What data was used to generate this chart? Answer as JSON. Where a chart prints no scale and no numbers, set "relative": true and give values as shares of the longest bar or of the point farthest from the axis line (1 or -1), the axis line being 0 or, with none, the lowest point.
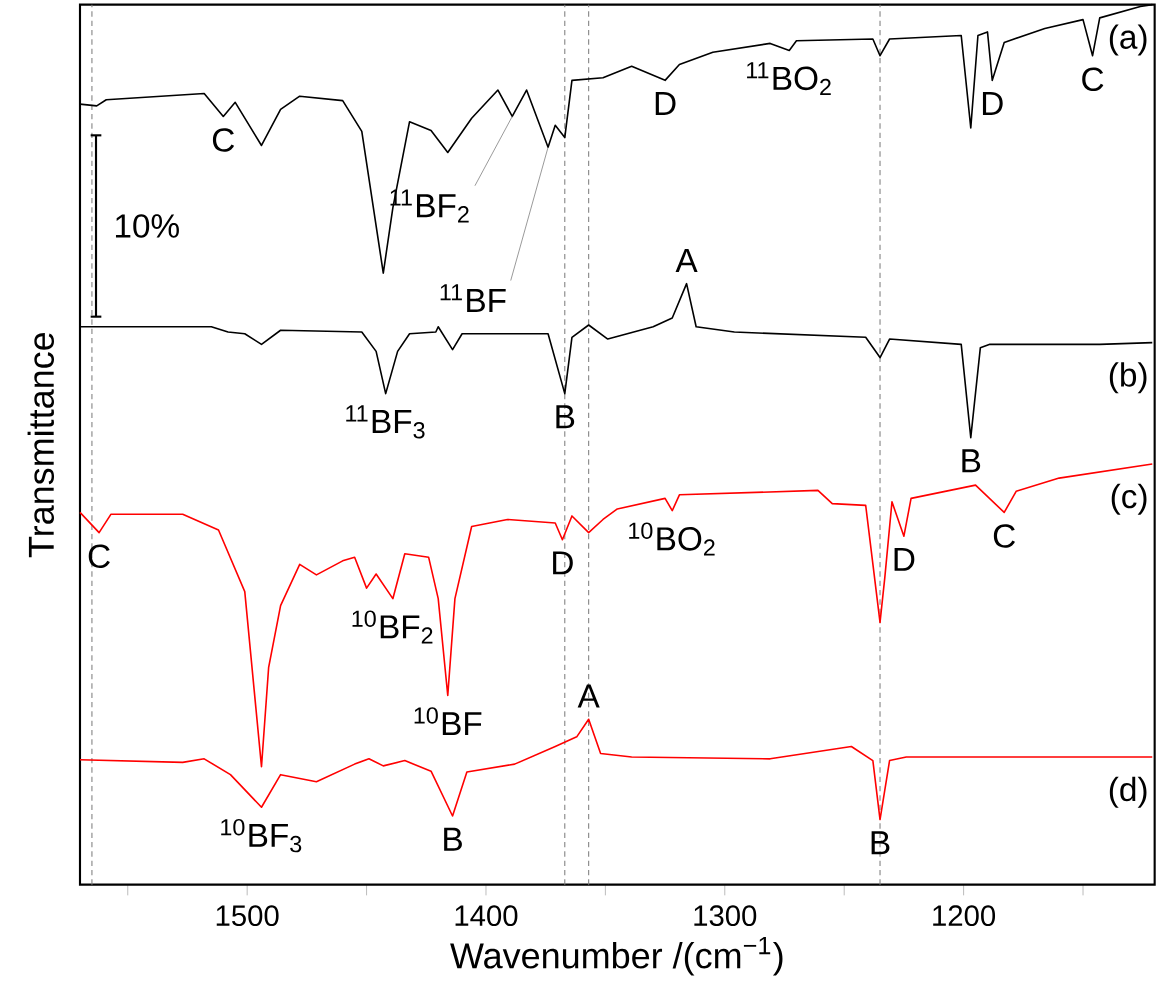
{
  "chart_data": {
    "type": "line",
    "relative": true,
    "xlabel": "Wavenumber /(cm$^{−1}$)",
    "ylabel": "Transmittance",
    "xlim": [
      1570,
      1120
    ],
    "xticks": [
      1500,
      1400,
      1300,
      1200,
      {
        "value": 1550,
        "label": null
      },
      {
        "value": 1450,
        "label": null
      },
      {
        "value": 1350,
        "label": null
      },
      {
        "value": 1250,
        "label": null
      },
      {
        "value": 1150,
        "label": null
      }
    ],
    "series": [
      {
        "name": "(a)",
        "color": "#000000",
        "x": [
          1570,
          1563,
          1559,
          1518,
          1510,
          1505,
          1494,
          1486,
          1478,
          1460,
          1452,
          1443,
          1439,
          1432,
          1423,
          1416,
          1406,
          1395,
          1389,
          1383,
          1374,
          1371,
          1367,
          1364,
          1351,
          1339,
          1325,
          1319,
          1305,
          1281,
          1273,
          1270,
          1238,
          1235,
          1231,
          1201,
          1197,
          1194,
          1190,
          1188,
          1183,
          1166,
          1150,
          1146,
          1143,
          1126,
          1121
        ],
        "values": [
          0.887,
          0.885,
          0.892,
          0.899,
          0.873,
          0.889,
          0.84,
          0.881,
          0.896,
          0.891,
          0.856,
          0.695,
          0.769,
          0.867,
          0.857,
          0.832,
          0.871,
          0.903,
          0.873,
          0.903,
          0.838,
          0.863,
          0.849,
          0.914,
          0.917,
          0.93,
          0.914,
          0.932,
          0.946,
          0.956,
          0.948,
          0.959,
          0.961,
          0.942,
          0.961,
          0.965,
          0.86,
          0.965,
          0.969,
          0.914,
          0.957,
          0.973,
          0.983,
          0.942,
          0.985,
          0.998,
          1
        ]
      },
      {
        "name": "(b)",
        "color": "#000000",
        "x": [
          1570,
          1515,
          1508,
          1501,
          1494,
          1486,
          1452,
          1446,
          1442,
          1437,
          1432,
          1421,
          1420,
          1414,
          1410,
          1374,
          1367,
          1364,
          1357,
          1349,
          1330,
          1322,
          1316,
          1312,
          1296,
          1241,
          1235,
          1231,
          1201,
          1197,
          1193,
          1189,
          1143,
          1121
        ],
        "values": [
          0.634,
          0.634,
          0.628,
          0.626,
          0.614,
          0.63,
          0.628,
          0.606,
          0.558,
          0.606,
          0.626,
          0.628,
          0.634,
          0.608,
          0.626,
          0.626,
          0.558,
          0.622,
          0.636,
          0.62,
          0.634,
          0.644,
          0.683,
          0.634,
          0.628,
          0.622,
          0.599,
          0.62,
          0.614,
          0.508,
          0.61,
          0.614,
          0.614,
          0.616
        ]
      },
      {
        "name": "(c)",
        "color": "#ff0000",
        "x": [
          1570,
          1562,
          1557,
          1527,
          1512,
          1501,
          1494,
          1491,
          1486,
          1478,
          1471,
          1460,
          1455,
          1450,
          1446,
          1439,
          1434,
          1424,
          1420,
          1416,
          1413,
          1406,
          1391,
          1371,
          1368,
          1364,
          1357,
          1351,
          1345,
          1325,
          1322,
          1319,
          1261,
          1255,
          1241,
          1235,
          1233,
          1230,
          1225,
          1222,
          1195,
          1183,
          1178,
          1160,
          1121
        ],
        "values": [
          0.423,
          0.4,
          0.421,
          0.421,
          0.403,
          0.333,
          0.134,
          0.247,
          0.317,
          0.364,
          0.352,
          0.368,
          0.372,
          0.337,
          0.353,
          0.325,
          0.376,
          0.372,
          0.325,
          0.215,
          0.325,
          0.407,
          0.415,
          0.411,
          0.392,
          0.419,
          0.4,
          0.415,
          0.427,
          0.439,
          0.425,
          0.443,
          0.448,
          0.433,
          0.431,
          0.298,
          0.349,
          0.435,
          0.396,
          0.439,
          0.454,
          0.423,
          0.447,
          0.462,
          0.478
        ]
      },
      {
        "name": "(d)",
        "color": "#ff0000",
        "x": [
          1570,
          1527,
          1518,
          1507,
          1494,
          1486,
          1471,
          1455,
          1449,
          1443,
          1434,
          1423,
          1414,
          1408,
          1388,
          1371,
          1362,
          1357,
          1352,
          1339,
          1281,
          1247,
          1238,
          1235,
          1231,
          1224,
          1198,
          1121
        ],
        "values": [
          0.142,
          0.139,
          0.143,
          0.125,
          0.088,
          0.125,
          0.117,
          0.137,
          0.143,
          0.135,
          0.141,
          0.129,
          0.078,
          0.128,
          0.137,
          0.157,
          0.168,
          0.188,
          0.149,
          0.145,
          0.143,
          0.157,
          0.141,
          0.074,
          0.141,
          0.145,
          0.145,
          0.145
        ]
      }
    ],
    "ref_lines": [
      {
        "axis": "x",
        "value": 1565,
        "line_style": "dashed",
        "color": "#808080"
      },
      {
        "axis": "x",
        "value": 1367,
        "line_style": "dashed",
        "color": "#808080"
      },
      {
        "axis": "x",
        "value": 1357,
        "line_style": "dashed",
        "color": "#808080"
      },
      {
        "axis": "x",
        "value": 1235,
        "line_style": "dashed",
        "color": "#808080"
      }
    ],
    "annotations": [
      "10%",
      {
        "text": "C",
        "x": 1510,
        "y": 0.873
      },
      {
        "text": "$^{11}$BF$_{2}$",
        "x": 1389,
        "y": 0.873
      },
      {
        "text": "$^{11}$BF",
        "x": 1374,
        "y": 0.838
      },
      {
        "text": "D",
        "x": 1325,
        "y": 0.914
      },
      {
        "text": "$^{11}$BO$_{2}$",
        "x": 1273,
        "y": 0.948
      },
      {
        "text": "D",
        "x": 1188,
        "y": 0.914
      },
      {
        "text": "C",
        "x": 1146,
        "y": 0.942
      },
      {
        "text": "A",
        "x": 1316,
        "y": 0.683
      },
      {
        "text": "$^{11}$BF$_{3}$",
        "x": 1442,
        "y": 0.558
      },
      {
        "text": "B",
        "x": 1367,
        "y": 0.558
      },
      {
        "text": "B",
        "x": 1197,
        "y": 0.508
      },
      {
        "text": "C",
        "x": 1562,
        "y": 0.4
      },
      {
        "text": "D",
        "x": 1368,
        "y": 0.392
      },
      {
        "text": "$^{10}$BO$_{2}$",
        "x": 1322,
        "y": 0.425
      },
      {
        "text": "D",
        "x": 1225,
        "y": 0.396
      },
      {
        "text": "C",
        "x": 1183,
        "y": 0.423
      },
      {
        "text": "$^{10}$BF$_{2}$",
        "x": 1439,
        "y": 0.325
      },
      {
        "text": "$^{10}$BF",
        "x": 1416,
        "y": 0.215
      },
      {
        "text": "A",
        "x": 1357,
        "y": 0.188
      },
      {
        "text": "$^{10}$BF$_{3}$",
        "x": 1494,
        "y": 0.088
      },
      {
        "text": "B",
        "x": 1414,
        "y": 0.078
      },
      {
        "text": "B",
        "x": 1235,
        "y": 0.074
      }
    ]
  }
}
